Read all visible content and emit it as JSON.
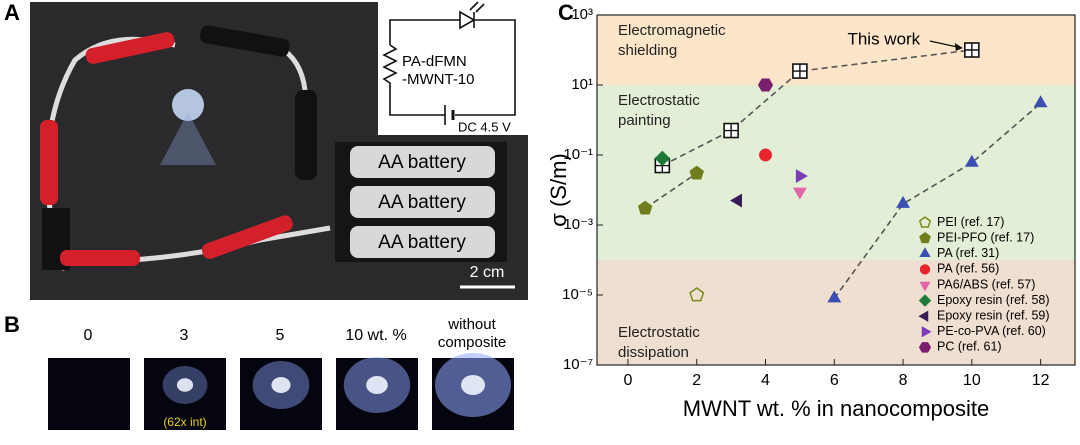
{
  "panel_a": {
    "label": "A",
    "circuit": {
      "resistor": [
        "PA-dFMN",
        "-MWNT-10"
      ],
      "source": "DC 4.5 V"
    },
    "batteries": [
      "AA battery",
      "AA battery",
      "AA battery"
    ],
    "scale_bar": "2 cm"
  },
  "panel_b": {
    "label": "B",
    "images": [
      {
        "label": "0"
      },
      {
        "label": "3",
        "note": "(62x int)"
      },
      {
        "label": "5"
      },
      {
        "label": "10 wt. %"
      },
      {
        "label": "without composite"
      }
    ]
  },
  "chart_data": {
    "type": "scatter",
    "panel_label": "C",
    "x_label": "MWNT wt. % in nanocomposite",
    "y_label": "σ (S/m)",
    "xlim": [
      -0.9,
      13
    ],
    "xticks": [
      0,
      2,
      4,
      6,
      8,
      10,
      12
    ],
    "ylim": [
      1e-07,
      1000
    ],
    "ylog": true,
    "yticks": [
      {
        "value": 1e-07,
        "label": "10⁻⁷"
      },
      {
        "value": 1e-05,
        "label": "10⁻⁵"
      },
      {
        "value": 0.001,
        "label": "10⁻³"
      },
      {
        "value": 0.1,
        "label": "10⁻¹"
      },
      {
        "value": 10,
        "label": "10¹"
      },
      {
        "value": 1000,
        "label": "10³"
      }
    ],
    "regions": [
      {
        "label": [
          "Electromagnetic",
          "shielding"
        ],
        "range": [
          10,
          1000
        ],
        "color": "#fde5c9"
      },
      {
        "label": [
          "Electrostatic",
          "painting"
        ],
        "range": [
          0.0001,
          10
        ],
        "color": "#e2efd6"
      },
      {
        "label": [
          "Electrostatic",
          "dissipation"
        ],
        "range": [
          1e-07,
          0.0001
        ],
        "color": "#efdfd0"
      }
    ],
    "annotation": "This work",
    "legend": "lower right",
    "series": [
      {
        "marker": "square-cross",
        "color": "#111111",
        "dashed": true,
        "x": [
          1,
          3,
          5,
          10
        ],
        "values": [
          0.05,
          0.5,
          25,
          100
        ]
      },
      {
        "name": "PEI (ref. 17)",
        "marker": "pentagon-open",
        "color": "#7a8a1e",
        "x": [
          2
        ],
        "values": [
          1e-05
        ]
      },
      {
        "name": "PEI-PFO (ref. 17)",
        "marker": "pentagon",
        "color": "#6f7d1c",
        "dashed": true,
        "x": [
          0.5,
          2
        ],
        "values": [
          0.003,
          0.03
        ]
      },
      {
        "name": "PA (ref. 31)",
        "marker": "triangle",
        "color": "#3b4fb3",
        "dashed": true,
        "x": [
          6,
          8,
          10,
          12
        ],
        "values": [
          8e-06,
          0.004,
          0.06,
          3
        ]
      },
      {
        "name": "PA (ref. 56)",
        "marker": "circle",
        "color": "#e8232b",
        "x": [
          4
        ],
        "values": [
          0.1
        ]
      },
      {
        "name": "PA6/ABS (ref. 57)",
        "marker": "triangle-down",
        "color": "#e066a8",
        "x": [
          5
        ],
        "values": [
          0.009
        ]
      },
      {
        "name": "Epoxy resin (ref. 58)",
        "marker": "diamond",
        "color": "#1f7a3a",
        "x": [
          1
        ],
        "values": [
          0.08
        ]
      },
      {
        "name": "Epoxy resin (ref. 59)",
        "marker": "triangle-left",
        "color": "#3a1c5a",
        "x": [
          3.2
        ],
        "values": [
          0.005
        ]
      },
      {
        "name": "PE-co-PVA (ref. 60)",
        "marker": "triangle-right",
        "color": "#7b3db5",
        "x": [
          5
        ],
        "values": [
          0.025
        ]
      },
      {
        "name": "PC (ref. 61)",
        "marker": "hexagon",
        "color": "#7a1f6c",
        "x": [
          4
        ],
        "values": [
          10
        ]
      }
    ]
  }
}
